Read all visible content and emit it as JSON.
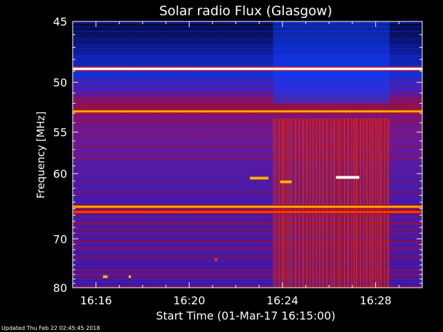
{
  "chart_data": {
    "type": "heatmap",
    "title": "Solar radio Flux (Glasgow)",
    "xlabel": "Start Time (01-Mar-17 16:15:00)",
    "ylabel": "Frequency [MHz]",
    "x_ticks": [
      "16:16",
      "16:20",
      "16:24",
      "16:28"
    ],
    "x_tick_minutes": [
      1,
      5,
      9,
      13
    ],
    "xlim_minutes": [
      0,
      15
    ],
    "y_ticks": [
      45,
      50,
      55,
      60,
      70,
      80
    ],
    "ylim_mhz": [
      45,
      80
    ],
    "y_scale": "reciprocal",
    "grid": false,
    "colormap": [
      "#000000",
      "#1a0a6e",
      "#3a1fd6",
      "#0a2cff",
      "#6a1aa0",
      "#b01010",
      "#ff3a00",
      "#ffb000",
      "#ffffff"
    ],
    "burst_interval_minutes": [
      8.6,
      13.6
    ],
    "bright_bands_mhz": [
      {
        "freq": 48.8,
        "level": 1.0
      },
      {
        "freq": 52.8,
        "level": 0.85
      },
      {
        "freq": 64.7,
        "level": 0.72
      },
      {
        "freq": 65.5,
        "level": 0.6
      }
    ],
    "features": [
      {
        "t": [
          7.6,
          8.4
        ],
        "f": 60.6,
        "level": 0.8
      },
      {
        "t": [
          8.9,
          9.4
        ],
        "f": 61.1,
        "level": 0.75
      },
      {
        "t": [
          11.3,
          12.3
        ],
        "f": 60.5,
        "level": 0.95
      },
      {
        "t": [
          1.3,
          1.5
        ],
        "f": 77.5,
        "level": 0.7
      },
      {
        "t": [
          2.4,
          2.5
        ],
        "f": 77.5,
        "level": 0.8
      },
      {
        "t": [
          6.1,
          6.2
        ],
        "f": 73.9,
        "level": 0.6
      }
    ]
  },
  "footer": "Updated Thu Feb 22 02:45:45 2018"
}
